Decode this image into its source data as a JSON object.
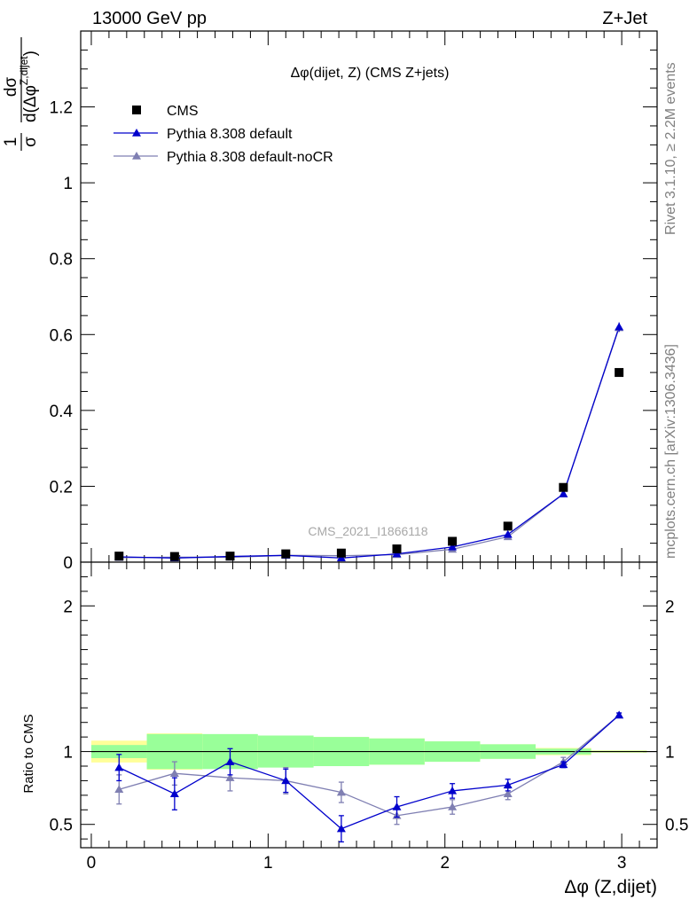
{
  "header": {
    "left": "13000 GeV pp",
    "right": "Z+Jet"
  },
  "side_labels": {
    "rivet": "Rivet 3.1.10, ≥ 2.2M events",
    "mcplots": "mcplots.cern.ch [arXiv:1306.3436]"
  },
  "colors": {
    "cms": "#000000",
    "pythia_default": "#0000cc",
    "pythia_nocr": "#7f7fb2",
    "band_inner": "#99ff99",
    "band_outer": "#ffff99"
  },
  "chart_data": [
    {
      "type": "scatter",
      "panel": "main",
      "title": "Δφ(dijet, Z) (CMS Z+jets)",
      "watermark": "CMS_2021_I1866118",
      "ylabel": "1/σ dσ/d(Δφ^Z,dijet)",
      "ylim": [
        0,
        1.4
      ],
      "xlim": [
        -0.06,
        3.2
      ],
      "yticks": [
        0,
        0.2,
        0.4,
        0.6,
        0.8,
        1,
        1.2
      ],
      "ytick_labels": [
        "0",
        "0.2",
        "0.4",
        "0.6",
        "0.8",
        "1",
        "1.2"
      ],
      "legend_position": "top-left",
      "x": [
        0.157,
        0.471,
        0.785,
        1.1,
        1.414,
        1.728,
        2.042,
        2.356,
        2.67,
        2.985
      ],
      "series": [
        {
          "name": "CMS",
          "marker": "square",
          "values": [
            0.016,
            0.015,
            0.016,
            0.022,
            0.024,
            0.035,
            0.055,
            0.095,
            0.197,
            0.5
          ]
        },
        {
          "name": "Pythia 8.308 default",
          "marker": "triangle",
          "values": [
            0.014,
            0.011,
            0.015,
            0.018,
            0.011,
            0.022,
            0.04,
            0.073,
            0.18,
            0.62
          ],
          "errors": [
            0.001,
            0.001,
            0.001,
            0.001,
            0.001,
            0.001,
            0.002,
            0.003,
            0.005,
            0.012
          ]
        },
        {
          "name": "Pythia 8.308 default-noCR",
          "marker": "triangle",
          "values": [
            0.012,
            0.013,
            0.013,
            0.018,
            0.017,
            0.02,
            0.034,
            0.067,
            0.18,
            0.618
          ],
          "errors": [
            0.001,
            0.001,
            0.001,
            0.001,
            0.001,
            0.001,
            0.002,
            0.003,
            0.005,
            0.012
          ]
        }
      ]
    },
    {
      "type": "scatter",
      "panel": "ratio",
      "ylabel": "Ratio to CMS",
      "xlabel": "Δφ (Z,dijet)",
      "ylim": [
        0.34,
        2.3
      ],
      "xlim": [
        -0.06,
        3.2
      ],
      "xticks": [
        0,
        1,
        2,
        3
      ],
      "xtick_labels": [
        "0",
        "1",
        "2",
        "3"
      ],
      "yticks": [
        0.5,
        1,
        2
      ],
      "ytick_labels": [
        "0.5",
        "1",
        "2"
      ],
      "x": [
        0.157,
        0.471,
        0.785,
        1.1,
        1.414,
        1.728,
        2.042,
        2.356,
        2.67,
        2.985
      ],
      "band_edges": [
        0,
        0.314,
        0.628,
        0.942,
        1.257,
        1.571,
        1.885,
        2.199,
        2.513,
        2.827,
        3.142
      ],
      "band_inner": [
        0.045,
        0.12,
        0.12,
        0.11,
        0.1,
        0.09,
        0.07,
        0.05,
        0.02,
        0.005
      ],
      "band_outer": [
        0.075,
        0.125,
        0.115,
        0.1,
        0.1,
        0.09,
        0.07,
        0.05,
        0.025,
        0.008
      ],
      "series": [
        {
          "name": "Pythia 8.308 default",
          "values": [
            0.89,
            0.71,
            0.93,
            0.8,
            0.47,
            0.62,
            0.73,
            0.77,
            0.91,
            1.25
          ],
          "errors": [
            0.09,
            0.11,
            0.09,
            0.08,
            0.09,
            0.07,
            0.05,
            0.04,
            0.02,
            0.015
          ]
        },
        {
          "name": "Pythia 8.308 default-noCR",
          "values": [
            0.74,
            0.85,
            0.82,
            0.8,
            0.72,
            0.56,
            0.62,
            0.71,
            0.93,
            1.25
          ],
          "errors": [
            0.1,
            0.08,
            0.09,
            0.09,
            0.07,
            0.06,
            0.05,
            0.04,
            0.03,
            0.015
          ]
        }
      ]
    }
  ]
}
